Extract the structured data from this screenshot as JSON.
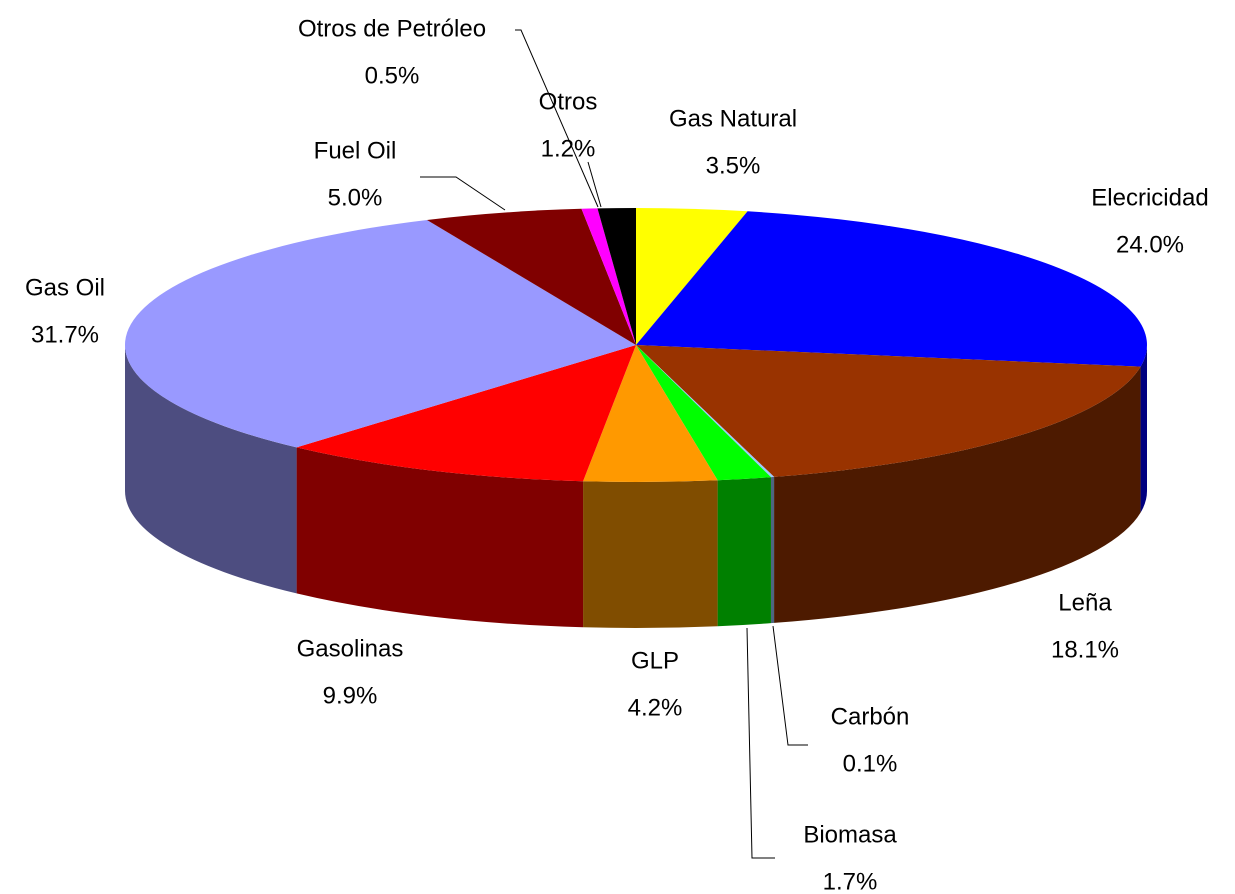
{
  "chart_data": {
    "type": "pie3d",
    "categories": [
      "Gas Natural",
      "Elecricidad",
      "Leña",
      "Carbón",
      "Biomasa",
      "GLP",
      "Gasolinas",
      "Gas Oil",
      "Fuel Oil",
      "Otros de Petróleo",
      "Otros"
    ],
    "values": [
      3.5,
      24.0,
      18.1,
      0.1,
      1.7,
      4.2,
      9.9,
      31.7,
      5.0,
      0.5,
      1.2
    ],
    "value_labels": [
      "3.5%",
      "24.0%",
      "18.1%",
      "0.1%",
      "1.7%",
      "4.2%",
      "9.9%",
      "31.7%",
      "5.0%",
      "0.5%",
      "1.2%"
    ],
    "colors": [
      "#ffff00",
      "#0000ff",
      "#993300",
      "#99ccff",
      "#00ff00",
      "#ff9900",
      "#ff0000",
      "#9999ff",
      "#800000",
      "#ff00ff",
      "#000000"
    ]
  }
}
